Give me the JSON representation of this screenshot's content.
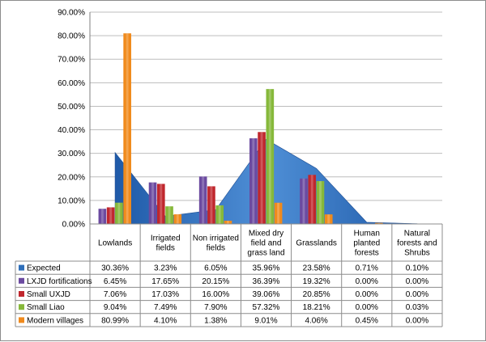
{
  "chart_data": {
    "type": "bar",
    "title": "",
    "xlabel": "",
    "ylabel": "",
    "ylim": [
      0,
      90
    ],
    "y_unit": "%",
    "y_ticks": [
      "0.00%",
      "10.00%",
      "20.00%",
      "30.00%",
      "40.00%",
      "50.00%",
      "60.00%",
      "70.00%",
      "80.00%",
      "90.00%"
    ],
    "grid": true,
    "legend": "data-table",
    "categories": [
      [
        "Lowlands"
      ],
      [
        "Irrigated",
        "fields"
      ],
      [
        "Non irrigated",
        "fields"
      ],
      [
        "Mixed dry",
        "field and",
        "grass land"
      ],
      [
        "Grasslands"
      ],
      [
        "Human",
        "planted",
        "forests"
      ],
      [
        "Natural",
        "forests and",
        "Shrubs"
      ]
    ],
    "series": [
      {
        "name": "Expected",
        "type": "area",
        "color": "#2f6fba",
        "values": [
          30.36,
          3.23,
          6.05,
          35.96,
          23.58,
          0.71,
          0.1
        ],
        "labels": [
          "30.36%",
          "3.23%",
          "6.05%",
          "35.96%",
          "23.58%",
          "0.71%",
          "0.10%"
        ]
      },
      {
        "name": "LXJD fortifications",
        "type": "bar",
        "color": "#6b4aa0",
        "values": [
          6.45,
          17.65,
          20.15,
          36.39,
          19.32,
          0.0,
          0.0
        ],
        "labels": [
          "6.45%",
          "17.65%",
          "20.15%",
          "36.39%",
          "19.32%",
          "0.00%",
          "0.00%"
        ]
      },
      {
        "name": "Small UXJD",
        "type": "bar",
        "color": "#c0272d",
        "values": [
          7.06,
          17.03,
          16.0,
          39.06,
          20.85,
          0.0,
          0.0
        ],
        "labels": [
          "7.06%",
          "17.03%",
          "16.00%",
          "39.06%",
          "20.85%",
          "0.00%",
          "0.00%"
        ]
      },
      {
        "name": "Small Liao",
        "type": "bar",
        "color": "#86b83a",
        "values": [
          9.04,
          7.49,
          7.9,
          57.32,
          18.21,
          0.0,
          0.03
        ],
        "labels": [
          "9.04%",
          "7.49%",
          "7.90%",
          "57.32%",
          "18.21%",
          "0.00%",
          "0.03%"
        ]
      },
      {
        "name": "Modern villages",
        "type": "bar",
        "color": "#f08a1c",
        "values": [
          80.99,
          4.1,
          1.38,
          9.01,
          4.06,
          0.45,
          0.0
        ],
        "labels": [
          "80.99%",
          "4.10%",
          "1.38%",
          "9.01%",
          "4.06%",
          "0.45%",
          "0.00%"
        ]
      }
    ]
  }
}
